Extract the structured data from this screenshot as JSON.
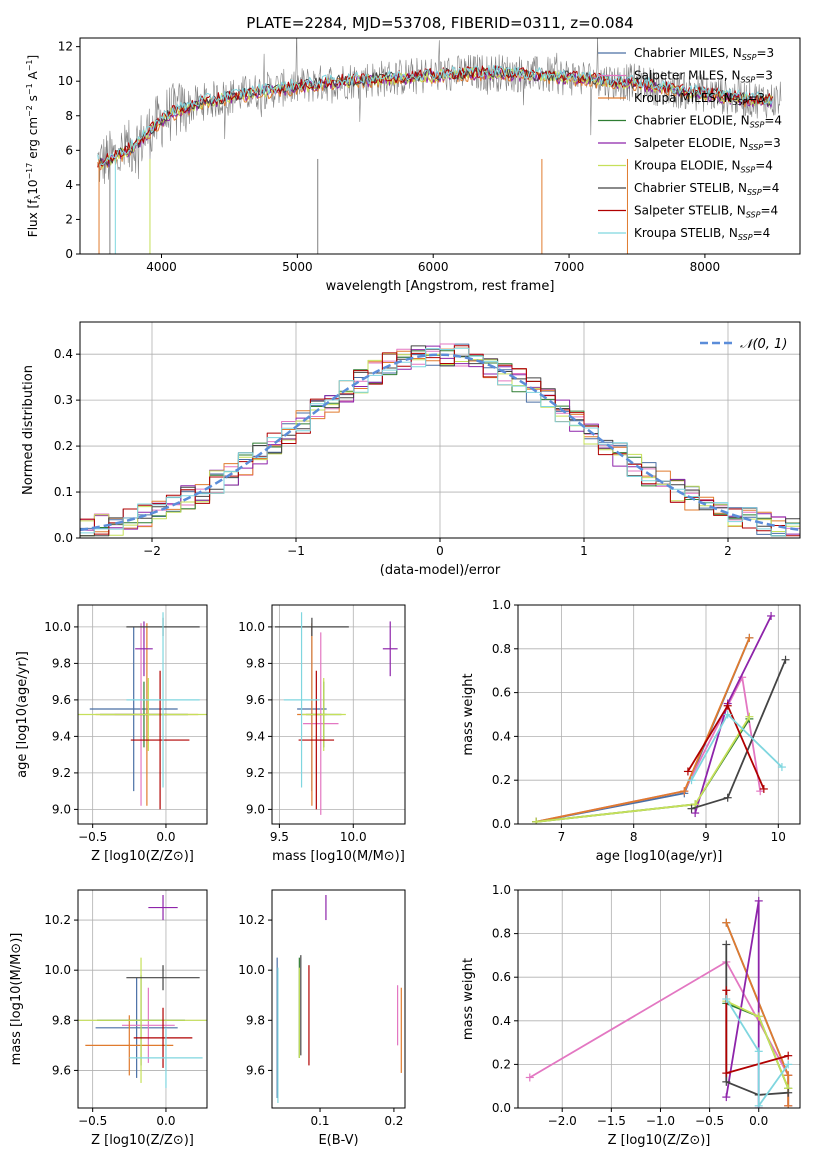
{
  "figure_title": "PLATE=2284, MJD=53708, FIBERID=0311, z=0.084",
  "colors": {
    "Chabrier MILES": "#4a6fa5",
    "Salpeter MILES": "#e377c2",
    "Kroupa MILES": "#e07b2e",
    "Chabrier ELODIE": "#2e7d32",
    "Salpeter ELODIE": "#8e24aa",
    "Kroupa ELODIE": "#c6e05a",
    "Chabrier STELIB": "#444444",
    "Salpeter STELIB": "#b00000",
    "Kroupa STELIB": "#7fd6df",
    "gaussian": "#5b8dd9",
    "grid": "#b0b0b0"
  },
  "chart_data": [
    {
      "id": "spectrum",
      "type": "line",
      "title": "PLATE=2284, MJD=53708, FIBERID=0311, z=0.084",
      "xlabel": "wavelength [Angstrom, rest frame]",
      "ylabel": "Flux [f_λ 10^-17 erg cm^-2 s^-1 A^-1]",
      "xlim": [
        3400,
        8700
      ],
      "ylim": [
        0,
        12.5
      ],
      "xticks": [
        "4000",
        "5000",
        "6000",
        "7000",
        "8000"
      ],
      "yticks": [
        "0",
        "2",
        "4",
        "6",
        "8",
        "10",
        "12"
      ],
      "grid": false,
      "legend_position": "right",
      "legend": [
        "Chabrier MILES, N_SSP=3",
        "Salpeter MILES, N_SSP=3",
        "Kroupa MILES, N_SSP=3",
        "Chabrier ELODIE, N_SSP=4",
        "Salpeter ELODIE, N_SSP=3",
        "Kroupa ELODIE, N_SSP=4",
        "Chabrier STELIB, N_SSP=4",
        "Salpeter STELIB, N_SSP=4",
        "Kroupa STELIB, N_SSP=4"
      ],
      "continuum_x": [
        3550,
        3650,
        3750,
        3850,
        3950,
        4050,
        4150,
        4300,
        4500,
        4700,
        4900,
        5100,
        5300,
        5500,
        5700,
        5900,
        6100,
        6300,
        6500,
        6700,
        6900,
        7100,
        7300,
        7500,
        7700,
        7900,
        8100,
        8300,
        8500
      ],
      "continuum_y": [
        5.3,
        5.6,
        6.0,
        6.6,
        7.4,
        8.1,
        8.4,
        8.8,
        9.1,
        9.4,
        9.6,
        9.8,
        10.0,
        10.1,
        10.2,
        10.3,
        10.4,
        10.5,
        10.5,
        10.4,
        10.3,
        10.2,
        10.0,
        9.9,
        9.6,
        9.4,
        9.2,
        9.0,
        8.9
      ]
    },
    {
      "id": "residuals",
      "type": "histogram",
      "xlabel": "(data-model)/error",
      "ylabel": "Normed distribution",
      "xlim": [
        -2.5,
        2.5
      ],
      "ylim": [
        0,
        0.47
      ],
      "xticks": [
        "−2",
        "−1",
        "0",
        "1",
        "2"
      ],
      "yticks": [
        "0.0",
        "0.1",
        "0.2",
        "0.3",
        "0.4"
      ],
      "grid": true,
      "legend_position": "top-right",
      "legend": [
        "𝒩(0, 1)"
      ],
      "gaussian": {
        "mean": 0,
        "sigma": 1
      }
    },
    {
      "id": "age_vs_Z",
      "type": "errorbar",
      "xlabel": "Z [log10(Z/Z⊙)]",
      "ylabel": "age [log10(age/yr)]",
      "xlim": [
        -0.6,
        0.28
      ],
      "ylim": [
        8.92,
        10.12
      ],
      "xticks": [
        "−0.5",
        "0.0"
      ],
      "yticks": [
        "9.0",
        "9.2",
        "9.4",
        "9.6",
        "9.8",
        "10.0"
      ],
      "grid": true,
      "points": [
        {
          "model": "Chabrier MILES",
          "x": -0.22,
          "xerr": 0.3,
          "y": 9.55,
          "yerr": 0.45
        },
        {
          "model": "Salpeter MILES",
          "x": -0.17,
          "xerr": 0.18,
          "y": 9.52,
          "yerr": 0.5
        },
        {
          "model": "Kroupa MILES",
          "x": -0.13,
          "xerr": 0.35,
          "y": 9.52,
          "yerr": 0.5
        },
        {
          "model": "Chabrier ELODIE",
          "x": -0.15,
          "xerr": 0.3,
          "y": 9.52,
          "yerr": 0.18
        },
        {
          "model": "Salpeter ELODIE",
          "x": -0.15,
          "xerr": 0.06,
          "y": 9.88,
          "yerr": 0.15
        },
        {
          "model": "Kroupa ELODIE",
          "x": -0.12,
          "xerr": 0.48,
          "y": 9.52,
          "yerr": 0.2
        },
        {
          "model": "Chabrier STELIB",
          "x": -0.02,
          "xerr": 0.25,
          "y": 10.0,
          "yerr": 0.05
        },
        {
          "model": "Salpeter STELIB",
          "x": -0.04,
          "xerr": 0.2,
          "y": 9.38,
          "yerr": 0.38
        },
        {
          "model": "Kroupa STELIB",
          "x": -0.02,
          "xerr": 0.25,
          "y": 9.6,
          "yerr": 0.48
        }
      ]
    },
    {
      "id": "age_vs_mass",
      "type": "errorbar",
      "xlabel": "mass [log10(M/M⊙)]",
      "ylabel": "",
      "xlim": [
        9.45,
        10.35
      ],
      "ylim": [
        8.92,
        10.12
      ],
      "xticks": [
        "9.5",
        "10.0"
      ],
      "yticks": [
        "9.0",
        "9.2",
        "9.4",
        "9.6",
        "9.8",
        "10.0"
      ],
      "grid": true,
      "points": [
        {
          "model": "Chabrier MILES",
          "x": 9.72,
          "xerr": 0.1,
          "y": 9.55,
          "yerr": 0.45
        },
        {
          "model": "Salpeter MILES",
          "x": 9.78,
          "xerr": 0.12,
          "y": 9.47,
          "yerr": 0.5
        },
        {
          "model": "Kroupa MILES",
          "x": 9.72,
          "xerr": 0.1,
          "y": 9.52,
          "yerr": 0.5
        },
        {
          "model": "Chabrier ELODIE",
          "x": 9.8,
          "xerr": 0.12,
          "y": 9.52,
          "yerr": 0.18
        },
        {
          "model": "Salpeter ELODIE",
          "x": 10.25,
          "xerr": 0.05,
          "y": 9.88,
          "yerr": 0.15
        },
        {
          "model": "Kroupa ELODIE",
          "x": 9.8,
          "xerr": 0.15,
          "y": 9.52,
          "yerr": 0.2
        },
        {
          "model": "Chabrier STELIB",
          "x": 9.72,
          "xerr": 0.25,
          "y": 10.0,
          "yerr": 0.05
        },
        {
          "model": "Salpeter STELIB",
          "x": 9.75,
          "xerr": 0.12,
          "y": 9.38,
          "yerr": 0.38
        },
        {
          "model": "Kroupa STELIB",
          "x": 9.65,
          "xerr": 0.12,
          "y": 9.6,
          "yerr": 0.48
        }
      ]
    },
    {
      "id": "massweight_vs_age",
      "type": "line",
      "xlabel": "age [log10(age/yr)]",
      "ylabel": "mass weight",
      "xlim": [
        6.4,
        10.3
      ],
      "ylim": [
        0,
        1.0
      ],
      "xticks": [
        "7",
        "8",
        "9",
        "10"
      ],
      "yticks": [
        "0.0",
        "0.2",
        "0.4",
        "0.6",
        "0.8",
        "1.0"
      ],
      "grid": true,
      "series": [
        {
          "name": "Chabrier MILES",
          "x": [
            6.65,
            8.7,
            9.6
          ],
          "y": [
            0.01,
            0.14,
            0.85
          ]
        },
        {
          "name": "Salpeter MILES",
          "x": [
            6.65,
            8.7,
            9.5,
            9.75
          ],
          "y": [
            0.01,
            0.15,
            0.67,
            0.15
          ]
        },
        {
          "name": "Kroupa MILES",
          "x": [
            6.65,
            8.7,
            9.6
          ],
          "y": [
            0.01,
            0.15,
            0.85
          ]
        },
        {
          "name": "Chabrier ELODIE",
          "x": [
            6.65,
            8.85,
            9.6
          ],
          "y": [
            0.01,
            0.09,
            0.48
          ]
        },
        {
          "name": "Salpeter ELODIE",
          "x": [
            8.85,
            9.3,
            9.9
          ],
          "y": [
            0.05,
            0.55,
            0.95
          ]
        },
        {
          "name": "Kroupa ELODIE",
          "x": [
            6.65,
            8.85,
            9.6
          ],
          "y": [
            0.01,
            0.09,
            0.49
          ]
        },
        {
          "name": "Chabrier STELIB",
          "x": [
            8.8,
            9.3,
            10.1
          ],
          "y": [
            0.07,
            0.12,
            0.75
          ]
        },
        {
          "name": "Salpeter STELIB",
          "x": [
            8.75,
            9.3,
            9.8
          ],
          "y": [
            0.24,
            0.54,
            0.16
          ]
        },
        {
          "name": "Kroupa STELIB",
          "x": [
            8.8,
            9.3,
            10.05
          ],
          "y": [
            0.2,
            0.5,
            0.26
          ]
        }
      ]
    },
    {
      "id": "mass_vs_Z",
      "type": "errorbar",
      "xlabel": "Z [log10(Z/Z⊙)]",
      "ylabel": "mass [log10(M/M⊙)]",
      "xlim": [
        -0.6,
        0.28
      ],
      "ylim": [
        9.45,
        10.32
      ],
      "xticks": [
        "−0.5",
        "0.0"
      ],
      "yticks": [
        "9.6",
        "9.8",
        "10.0",
        "10.2"
      ],
      "grid": true,
      "points": [
        {
          "model": "Chabrier MILES",
          "x": -0.2,
          "xerr": 0.28,
          "y": 9.77,
          "yerr": 0.2
        },
        {
          "model": "Salpeter MILES",
          "x": -0.12,
          "xerr": 0.18,
          "y": 9.78,
          "yerr": 0.15
        },
        {
          "model": "Kroupa MILES",
          "x": -0.25,
          "xerr": 0.3,
          "y": 9.7,
          "yerr": 0.12
        },
        {
          "model": "Chabrier ELODIE",
          "x": -0.17,
          "xerr": 0.3,
          "y": 9.8,
          "yerr": 0.18
        },
        {
          "model": "Salpeter ELODIE",
          "x": -0.02,
          "xerr": 0.1,
          "y": 10.25,
          "yerr": 0.05
        },
        {
          "model": "Kroupa ELODIE",
          "x": -0.17,
          "xerr": 0.45,
          "y": 9.8,
          "yerr": 0.25
        },
        {
          "model": "Chabrier STELIB",
          "x": -0.02,
          "xerr": 0.25,
          "y": 9.97,
          "yerr": 0.05
        },
        {
          "model": "Salpeter STELIB",
          "x": -0.02,
          "xerr": 0.2,
          "y": 9.73,
          "yerr": 0.12
        },
        {
          "model": "Kroupa STELIB",
          "x": 0.0,
          "xerr": 0.25,
          "y": 9.65,
          "yerr": 0.12
        }
      ]
    },
    {
      "id": "mass_vs_EBV",
      "type": "errorbar",
      "xlabel": "E(B-V)",
      "ylabel": "",
      "xlim": [
        0.035,
        0.215
      ],
      "ylim": [
        9.45,
        10.32
      ],
      "xticks": [
        "0.1",
        "0.2"
      ],
      "yticks": [
        "9.6",
        "9.8",
        "10.0",
        "10.2"
      ],
      "grid": false,
      "points": [
        {
          "model": "Chabrier MILES",
          "x": 0.042,
          "xerr": 0,
          "y": 9.77,
          "yerr": 0.28
        },
        {
          "model": "Salpeter MILES",
          "x": 0.205,
          "xerr": 0,
          "y": 9.82,
          "yerr": 0.12
        },
        {
          "model": "Kroupa MILES",
          "x": 0.21,
          "xerr": 0,
          "y": 9.76,
          "yerr": 0.17
        },
        {
          "model": "Chabrier ELODIE",
          "x": 0.072,
          "xerr": 0,
          "y": 9.85,
          "yerr": 0.2
        },
        {
          "model": "Salpeter ELODIE",
          "x": 0.108,
          "xerr": 0,
          "y": 10.25,
          "yerr": 0.05
        },
        {
          "model": "Kroupa ELODIE",
          "x": 0.072,
          "xerr": 0,
          "y": 9.83,
          "yerr": 0.18
        },
        {
          "model": "Chabrier STELIB",
          "x": 0.074,
          "xerr": 0,
          "y": 9.86,
          "yerr": 0.2
        },
        {
          "model": "Salpeter STELIB",
          "x": 0.085,
          "xerr": 0,
          "y": 9.82,
          "yerr": 0.2
        },
        {
          "model": "Kroupa STELIB",
          "x": 0.043,
          "xerr": 0,
          "y": 9.74,
          "yerr": 0.27
        }
      ]
    },
    {
      "id": "massweight_vs_Z",
      "type": "line",
      "xlabel": "Z [log10(Z/Z⊙)]",
      "ylabel": "mass weight",
      "xlim": [
        -2.45,
        0.42
      ],
      "ylim": [
        0,
        1.0
      ],
      "xticks": [
        "−2.0",
        "−1.5",
        "−1.0",
        "−0.5",
        "0.0"
      ],
      "yticks": [
        "0.0",
        "0.2",
        "0.4",
        "0.6",
        "0.8",
        "1.0"
      ],
      "grid": true,
      "series": [
        {
          "name": "Chabrier MILES",
          "x": [
            -0.33,
            0.3,
            0.3
          ],
          "y": [
            0.85,
            0.15,
            0.01
          ]
        },
        {
          "name": "Salpeter MILES",
          "x": [
            -2.33,
            -0.33,
            0.3,
            0.3
          ],
          "y": [
            0.14,
            0.67,
            0.15,
            0.01
          ]
        },
        {
          "name": "Kroupa MILES",
          "x": [
            -0.33,
            0.3,
            0.3
          ],
          "y": [
            0.85,
            0.15,
            0.01
          ]
        },
        {
          "name": "Chabrier ELODIE",
          "x": [
            -0.33,
            0.0,
            0.3
          ],
          "y": [
            0.48,
            0.42,
            0.09
          ]
        },
        {
          "name": "Salpeter ELODIE",
          "x": [
            -0.33,
            0.0,
            0.0
          ],
          "y": [
            0.05,
            0.95,
            0.0
          ]
        },
        {
          "name": "Kroupa ELODIE",
          "x": [
            -0.33,
            0.0,
            0.3
          ],
          "y": [
            0.49,
            0.42,
            0.09
          ]
        },
        {
          "name": "Chabrier STELIB",
          "x": [
            -0.33,
            -0.33,
            0.0,
            0.3
          ],
          "y": [
            0.75,
            0.12,
            0.06,
            0.07
          ]
        },
        {
          "name": "Salpeter STELIB",
          "x": [
            -0.33,
            -0.33,
            0.3
          ],
          "y": [
            0.54,
            0.16,
            0.24
          ]
        },
        {
          "name": "Kroupa STELIB",
          "x": [
            -0.33,
            0.0,
            0.0,
            0.3
          ],
          "y": [
            0.5,
            0.26,
            0.01,
            0.2
          ]
        }
      ]
    }
  ]
}
